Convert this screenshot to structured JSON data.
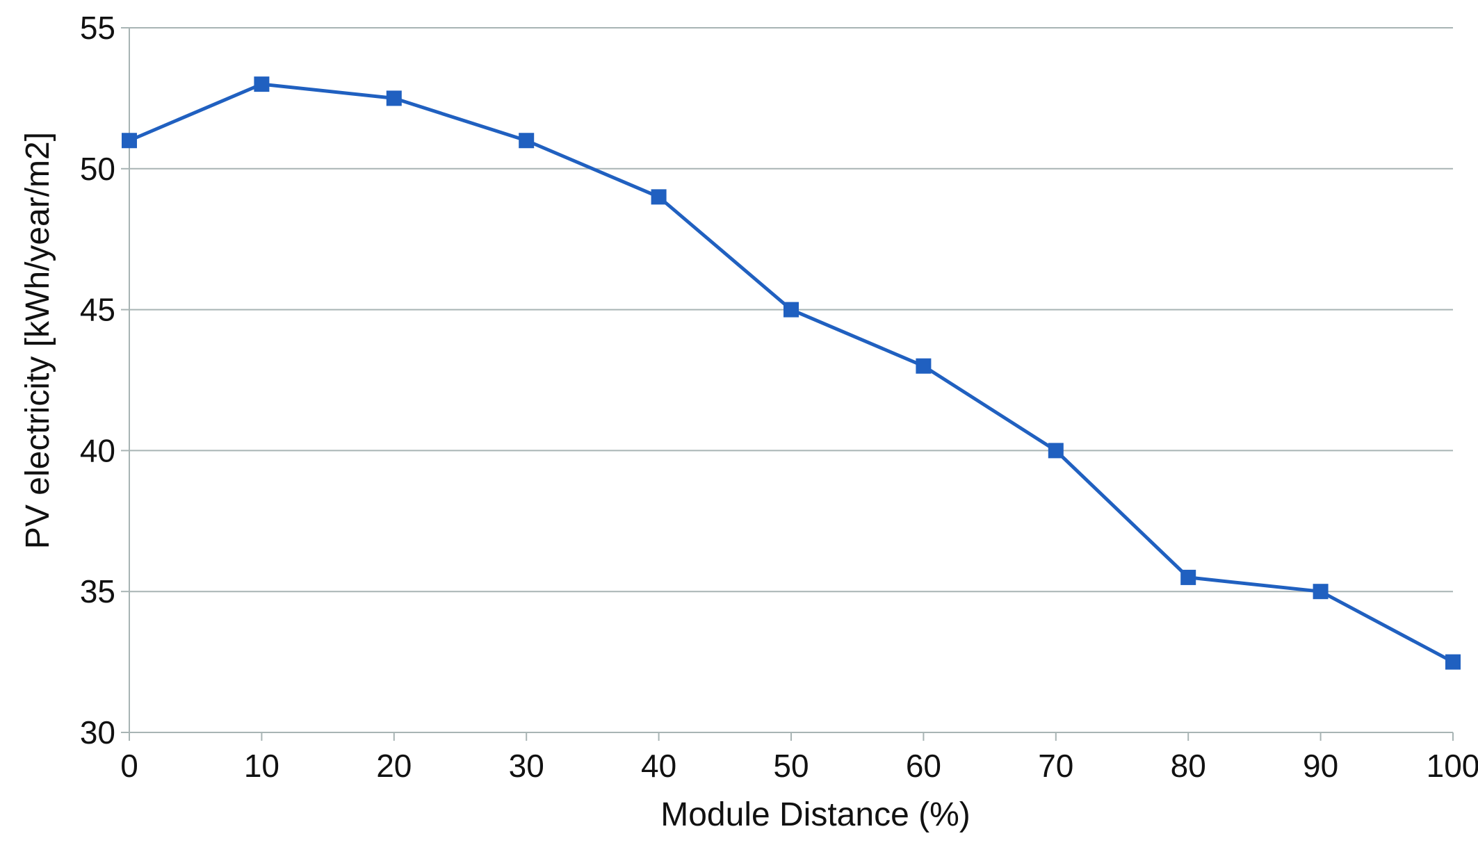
{
  "chart_data": {
    "type": "line",
    "title": "",
    "xlabel": "Module Distance (%)",
    "ylabel": "PV electricity [kWh/year/m2]",
    "x": [
      0,
      10,
      20,
      30,
      40,
      50,
      60,
      70,
      80,
      90,
      100
    ],
    "xticks": [
      "0",
      "10",
      "20",
      "30",
      "40",
      "50",
      "60",
      "70",
      "80",
      "90",
      "100"
    ],
    "yticks": [
      "30",
      "35",
      "40",
      "45",
      "50",
      "55"
    ],
    "xlim": [
      0,
      100
    ],
    "ylim": [
      30,
      55
    ],
    "grid": "horizontal",
    "legend": "none",
    "series": [
      {
        "values": [
          51,
          53,
          52.5,
          51,
          49,
          45,
          43,
          40,
          35.5,
          35,
          32.5
        ],
        "color": "#2060c0",
        "marker": "square"
      }
    ],
    "colors": {
      "line": "#2060c0",
      "marker": "#2060c0",
      "grid": "#a8b4b4",
      "axis": "#a8b4b4"
    }
  }
}
